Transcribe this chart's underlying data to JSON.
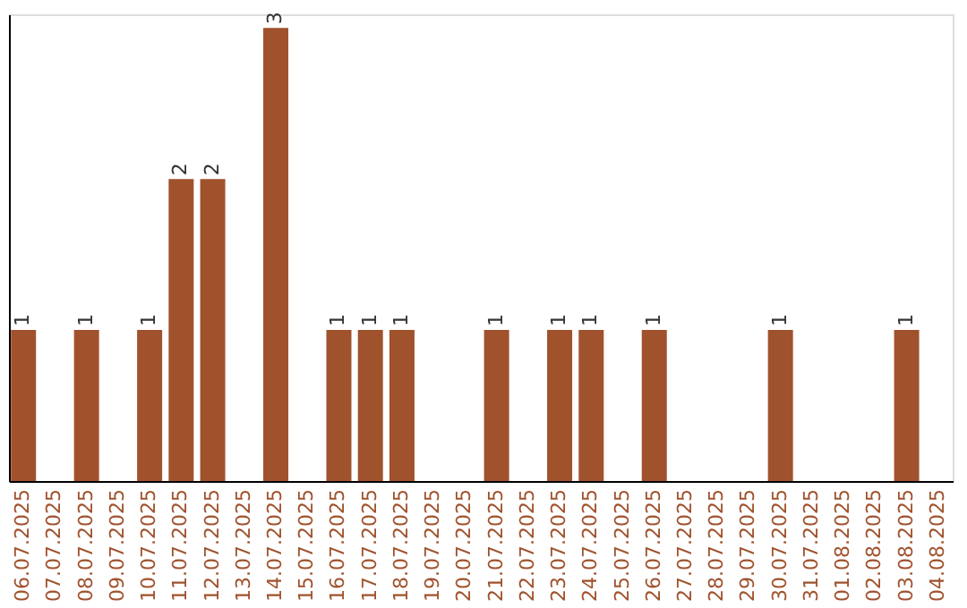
{
  "chart_data": {
    "type": "bar",
    "categories": [
      "06.07.2025",
      "07.07.2025",
      "08.07.2025",
      "09.07.2025",
      "10.07.2025",
      "11.07.2025",
      "12.07.2025",
      "13.07.2025",
      "14.07.2025",
      "15.07.2025",
      "16.07.2025",
      "17.07.2025",
      "18.07.2025",
      "19.07.2025",
      "20.07.2025",
      "21.07.2025",
      "22.07.2025",
      "23.07.2025",
      "24.07.2025",
      "25.07.2025",
      "26.07.2025",
      "27.07.2025",
      "28.07.2025",
      "29.07.2025",
      "30.07.2025",
      "31.07.2025",
      "01.08.2025",
      "02.08.2025",
      "03.08.2025",
      "04.08.2025"
    ],
    "values": [
      1,
      0,
      1,
      0,
      1,
      2,
      2,
      0,
      3,
      0,
      1,
      1,
      1,
      0,
      0,
      1,
      0,
      1,
      1,
      0,
      1,
      0,
      0,
      0,
      1,
      0,
      0,
      0,
      1,
      0
    ],
    "value_labels": [
      "1",
      null,
      "1",
      null,
      "1",
      "2",
      "2",
      null,
      "3",
      null,
      "1",
      "1",
      "1",
      null,
      null,
      "1",
      null,
      "1",
      "1",
      null,
      "1",
      null,
      null,
      null,
      "1",
      null,
      null,
      null,
      "1",
      null
    ],
    "color": "#a0522d",
    "tick_labels": "x",
    "grid": false
  }
}
